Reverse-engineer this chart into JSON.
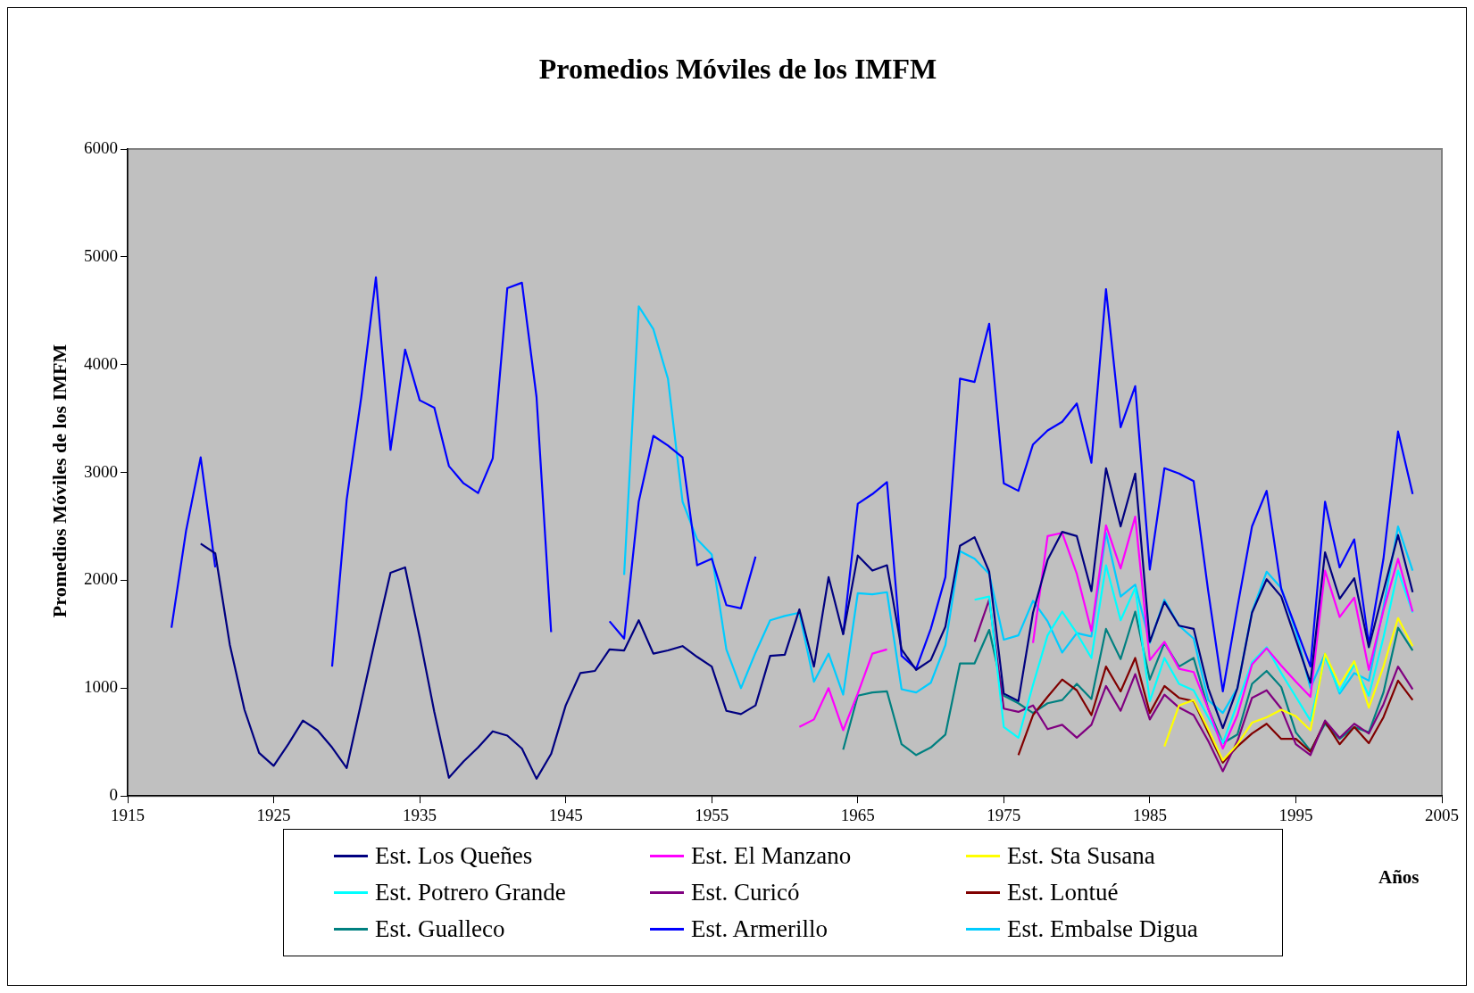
{
  "chart_data": {
    "type": "line",
    "title": "Promedios Móviles de los IMFM",
    "ylabel": "Promedios Móviles de los IMFM",
    "xlabel": "Años",
    "xlim": [
      1915,
      2005
    ],
    "xticks": [
      1915,
      1925,
      1935,
      1945,
      1955,
      1965,
      1975,
      1985,
      1995,
      2005
    ],
    "ylim": [
      0,
      6000
    ],
    "yticks": [
      0,
      1000,
      2000,
      3000,
      4000,
      5000,
      6000
    ],
    "grid": false,
    "legend": "bottom",
    "marker": "none",
    "line_style": "solid",
    "series": [
      {
        "name": "Est. Los Queñes",
        "color": "#000080",
        "x": [
          1920,
          1921,
          1922,
          1923,
          1924,
          1925,
          1926,
          1927,
          1928,
          1929,
          1930,
          1931,
          1932,
          1933,
          1934,
          1935,
          1936,
          1937,
          1938,
          1939,
          1940,
          1941,
          1942,
          1943,
          1944,
          1945,
          1946,
          1947,
          1948,
          1949,
          1950,
          1951,
          1952,
          1953,
          1954,
          1955,
          1956,
          1957,
          1958,
          1959,
          1960,
          1961,
          1962,
          1963,
          1964,
          1965,
          1966,
          1967,
          1968,
          1969,
          1970,
          1971,
          1972,
          1973,
          1974,
          1975,
          1976,
          1977,
          1978,
          1979,
          1980,
          1981,
          1982,
          1983,
          1984,
          1985,
          1986,
          1987,
          1988,
          1989,
          1990,
          1991,
          1992,
          1993,
          1994,
          1995,
          1996,
          1997,
          1998,
          1999,
          2000,
          2001,
          2002,
          2003
        ],
        "values": [
          2340,
          2250,
          1400,
          800,
          400,
          280,
          480,
          700,
          610,
          450,
          260,
          870,
          1480,
          2070,
          2120,
          1470,
          780,
          170,
          320,
          450,
          600,
          560,
          440,
          160,
          390,
          840,
          1140,
          1160,
          1360,
          1350,
          1630,
          1320,
          1350,
          1390,
          1290,
          1200,
          790,
          760,
          840,
          1300,
          1310,
          1730,
          1200,
          2030,
          1500,
          2230,
          2090,
          2140,
          1360,
          1170,
          1260,
          1570,
          2320,
          2400,
          2080,
          950,
          880,
          1700,
          2190,
          2450,
          2410,
          1900,
          3040,
          2500,
          2990,
          1430,
          1800,
          1580,
          1550,
          1000,
          630,
          1000,
          1700,
          2010,
          1850,
          1450,
          1050,
          2260,
          1830,
          2020,
          1380,
          1900,
          2420,
          1890
        ]
      },
      {
        "name": "Est. El Manzano",
        "color": "#ff00ff",
        "x": [
          1961,
          1962,
          1963,
          1964,
          1965,
          1966,
          1967,
          1968,
          1969,
          1970,
          1971,
          1972,
          1973,
          1974,
          1975,
          1976,
          1977,
          1978,
          1979,
          1980,
          1981,
          1982,
          1983,
          1984,
          1985,
          1986,
          1987,
          1988,
          1989,
          1990,
          1991,
          1992,
          1993,
          1994,
          1995,
          1996,
          1997,
          1998,
          1999,
          2000,
          2001,
          2002,
          2003
        ],
        "values": [
          640,
          710,
          1000,
          610,
          950,
          1320,
          1360,
          null,
          null,
          null,
          null,
          null,
          null,
          null,
          null,
          null,
          1420,
          2410,
          2440,
          2060,
          1530,
          2510,
          2110,
          2590,
          1260,
          1430,
          1180,
          1150,
          810,
          440,
          750,
          1220,
          1370,
          1210,
          1060,
          920,
          2090,
          1660,
          1840,
          1170,
          1720,
          2200,
          1710
        ]
      },
      {
        "name": "Est. Sta Susana",
        "color": "#ffff00",
        "x": [
          1986,
          1987,
          1988,
          1989,
          1990,
          1991,
          1992,
          1993,
          1994,
          1995,
          1996,
          1997,
          1998,
          1999,
          2000,
          2001,
          2002,
          2003
        ],
        "values": [
          460,
          840,
          890,
          620,
          330,
          480,
          680,
          730,
          800,
          740,
          610,
          1320,
          1030,
          1250,
          820,
          1200,
          1650,
          1390
        ]
      },
      {
        "name": "Est. Potrero Grande",
        "color": "#00ffff",
        "x": [
          1973,
          1974,
          1975,
          1976,
          1977,
          1978,
          1979,
          1980,
          1981,
          1982,
          1983,
          1984,
          1985,
          1986,
          1987,
          1988,
          1989,
          1990,
          1991,
          1992,
          1993,
          1994,
          1995,
          1996,
          1997,
          1998,
          1999,
          2000,
          2001,
          2002,
          2003
        ],
        "values": [
          1820,
          1850,
          640,
          540,
          1030,
          1490,
          1710,
          1510,
          1280,
          2140,
          1630,
          1930,
          880,
          1280,
          1040,
          980,
          730,
          490,
          860,
          1240,
          1380,
          1140,
          920,
          700,
          1290,
          970,
          1220,
          930,
          1470,
          2090,
          1700
        ]
      },
      {
        "name": "Est. Curicó",
        "color": "#800080",
        "x": [
          1973,
          1974,
          1975,
          1976,
          1977,
          1978,
          1979,
          1980,
          1981,
          1982,
          1983,
          1984,
          1985,
          1986,
          1987,
          1988,
          1989,
          1990,
          1991,
          1992,
          1993,
          1994,
          1995,
          1996,
          1997,
          1998,
          1999,
          2000,
          2001,
          2002,
          2003
        ],
        "values": [
          1430,
          1820,
          810,
          780,
          840,
          620,
          660,
          540,
          660,
          1020,
          790,
          1130,
          710,
          940,
          820,
          750,
          510,
          230,
          510,
          910,
          980,
          810,
          480,
          380,
          700,
          540,
          670,
          580,
          850,
          1200,
          990
        ]
      },
      {
        "name": "Est. Lontué",
        "color": "#800000",
        "x": [
          1976,
          1977,
          1978,
          1979,
          1980,
          1981,
          1982,
          1983,
          1984,
          1985,
          1986,
          1987,
          1988,
          1989,
          1990,
          1991,
          1992,
          1993,
          1994,
          1995,
          1996,
          1997,
          1998,
          1999,
          2000,
          2001,
          2002,
          2003
        ],
        "values": [
          380,
          750,
          920,
          1080,
          980,
          750,
          1200,
          970,
          1280,
          770,
          1020,
          910,
          880,
          590,
          310,
          460,
          580,
          670,
          530,
          530,
          410,
          690,
          480,
          640,
          490,
          730,
          1070,
          890
        ]
      },
      {
        "name": "Est. Gualleco",
        "color": "#008080",
        "x": [
          1964,
          1965,
          1966,
          1967,
          1968,
          1969,
          1970,
          1971,
          1972,
          1973,
          1974,
          1975,
          1976,
          1977,
          1978,
          1979,
          1980,
          1981,
          1982,
          1983,
          1984,
          1985,
          1986,
          1987,
          1988,
          1989,
          1990,
          1991,
          1992,
          1993,
          1994,
          1995,
          1996,
          1997,
          1998,
          1999,
          2000,
          2001,
          2002,
          2003
        ],
        "values": [
          430,
          930,
          960,
          970,
          480,
          380,
          450,
          570,
          1230,
          1230,
          1540,
          930,
          860,
          770,
          860,
          890,
          1040,
          900,
          1550,
          1270,
          1710,
          1080,
          1420,
          1200,
          1280,
          810,
          490,
          570,
          1040,
          1160,
          1010,
          590,
          420,
          670,
          530,
          640,
          590,
          960,
          1560,
          1350
        ]
      },
      {
        "name": "Est. Armerillo",
        "color": "#0000ff",
        "x": [
          1918,
          1919,
          1920,
          1921,
          1922,
          1923,
          1924,
          1925,
          1926,
          1927,
          1928,
          1929,
          1930,
          1931,
          1932,
          1933,
          1934,
          1935,
          1936,
          1937,
          1938,
          1939,
          1940,
          1941,
          1942,
          1943,
          1944,
          1945,
          1946,
          1947,
          1948,
          1949,
          1950,
          1951,
          1952,
          1953,
          1954,
          1955,
          1956,
          1957,
          1958,
          1959,
          1960,
          1961,
          1962,
          1963,
          1964,
          1965,
          1966,
          1967,
          1968,
          1969,
          1970,
          1971,
          1972,
          1973,
          1974,
          1975,
          1976,
          1977,
          1978,
          1979,
          1980,
          1981,
          1982,
          1983,
          1984,
          1985,
          1986,
          1987,
          1988,
          1989,
          1990,
          1991,
          1992,
          1993,
          1994,
          1995,
          1996,
          1997,
          1998,
          1999,
          2000,
          2001,
          2002,
          2003
        ],
        "values": [
          1560,
          2460,
          3140,
          2120,
          null,
          null,
          null,
          null,
          null,
          null,
          null,
          1200,
          2750,
          3700,
          4810,
          3210,
          4140,
          3670,
          3600,
          3060,
          2900,
          2810,
          3130,
          4710,
          4760,
          3700,
          1520,
          null,
          null,
          null,
          1620,
          1460,
          2730,
          3340,
          3250,
          3140,
          2140,
          2200,
          1770,
          1740,
          2220,
          null,
          null,
          null,
          null,
          null,
          1500,
          2710,
          2800,
          2910,
          1300,
          1180,
          1550,
          2030,
          3870,
          3840,
          4380,
          2900,
          2830,
          3260,
          3390,
          3470,
          3640,
          3090,
          4700,
          3420,
          3800,
          2100,
          3040,
          2990,
          2920,
          1900,
          970,
          1750,
          2500,
          2830,
          1920,
          1560,
          1200,
          2730,
          2120,
          2380,
          1410,
          2200,
          3380,
          2800
        ]
      },
      {
        "name": "Est. Embalse Digua",
        "color": "#00ccff",
        "x": [
          1949,
          1950,
          1951,
          1952,
          1953,
          1954,
          1955,
          1956,
          1957,
          1958,
          1959,
          1960,
          1961,
          1962,
          1963,
          1964,
          1965,
          1966,
          1967,
          1968,
          1969,
          1970,
          1971,
          1972,
          1973,
          1974,
          1975,
          1976,
          1977,
          1978,
          1979,
          1980,
          1981,
          1982,
          1983,
          1984,
          1985,
          1986,
          1987,
          1988,
          1989,
          1990,
          1991,
          1992,
          1993,
          1994,
          1995,
          1996,
          1997,
          1998,
          1999,
          2000,
          2001,
          2002,
          2003
        ],
        "values": [
          2050,
          4540,
          4330,
          3870,
          2730,
          2380,
          2240,
          1360,
          1000,
          1330,
          1630,
          1670,
          1700,
          1060,
          1320,
          940,
          1880,
          1870,
          1890,
          990,
          960,
          1050,
          1400,
          2270,
          2200,
          2060,
          1450,
          1490,
          1810,
          1620,
          1330,
          1510,
          1480,
          2440,
          1850,
          1960,
          1420,
          1820,
          1580,
          1460,
          890,
          770,
          1000,
          1710,
          2080,
          1930,
          1530,
          1000,
          1320,
          950,
          1140,
          1070,
          1750,
          2500,
          2090
        ]
      }
    ]
  }
}
